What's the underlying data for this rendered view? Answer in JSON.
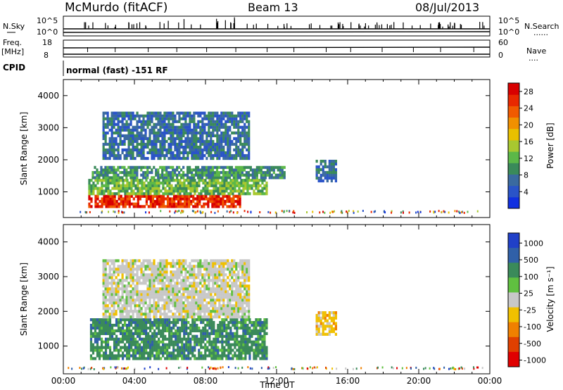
{
  "header": {
    "station": "McMurdo (fitACF)",
    "beam": "Beam 13",
    "date": "08/Jul/2013",
    "cpid_mode": "normal (fast) -151 RF"
  },
  "side_labels": {
    "nsky": "N.Sky",
    "freq": "Freq.",
    "mhz": "[MHz]",
    "cpid": "CPID",
    "nsearch": "N.Search",
    "nave": "Nave",
    "dots": "......",
    "dots_short": "...."
  },
  "strip_ticks": {
    "noise_top_left": "10^5",
    "noise_bottom_left": "10^0",
    "noise_top_right": "10^5",
    "noise_bottom_right": "10^0",
    "freq_top": "18",
    "freq_bottom": "8",
    "nave_top": "60",
    "nave_bottom": "0"
  },
  "colors": {
    "low_blue": "#1f3fd6",
    "mid_green": "#3a8a5a",
    "yellow": "#e0c200",
    "orange": "#f07800",
    "red": "#e01010",
    "grey": "#b8b8b8"
  },
  "chart_data": [
    {
      "type": "heatmap",
      "name": "power",
      "xlabel": "",
      "ylabel": "Slant Range [km]",
      "xlim": [
        0,
        24
      ],
      "ylim": [
        200,
        4500
      ],
      "yticks": [
        1000,
        2000,
        3000,
        4000
      ],
      "colorbar": {
        "label": "Power [dB]",
        "ticks": [
          "4",
          "8",
          "12",
          "16",
          "20",
          "24",
          "28"
        ],
        "colors": [
          "#1030e0",
          "#2a54c8",
          "#3a6aa0",
          "#3a8a5a",
          "#5cb848",
          "#a8c830",
          "#e8c000",
          "#f09000",
          "#f05a00",
          "#e82800",
          "#d80000"
        ]
      },
      "bands": [
        {
          "t0": 1.4,
          "t1": 10.0,
          "r0": 500,
          "r1": 900,
          "value": 26
        },
        {
          "t0": 1.4,
          "t1": 11.5,
          "r0": 900,
          "r1": 1400,
          "value": 12
        },
        {
          "t0": 1.6,
          "t1": 12.5,
          "r0": 1400,
          "r1": 1800,
          "value": 8
        },
        {
          "t0": 2.2,
          "t1": 10.5,
          "r0": 2000,
          "r1": 3500,
          "value": 6
        },
        {
          "t0": 14.2,
          "t1": 15.4,
          "r0": 1300,
          "r1": 2000,
          "value": 6
        }
      ]
    },
    {
      "type": "heatmap",
      "name": "velocity",
      "xlabel": "Time UT",
      "ylabel": "Slant Range [km]",
      "xlim": [
        0,
        24
      ],
      "ylim": [
        200,
        4500
      ],
      "xticks": [
        "00:00",
        "04:00",
        "08:00",
        "12:00",
        "16:00",
        "20:00",
        "00:00"
      ],
      "yticks": [
        1000,
        2000,
        3000,
        4000
      ],
      "colorbar": {
        "label": "Velocity [m s⁻¹]",
        "ticks": [
          "1000",
          "500",
          "100",
          "25",
          "-25",
          "-100",
          "-500",
          "-1000"
        ],
        "colors": [
          "#2040c8",
          "#3060a8",
          "#3a8a5a",
          "#60c040",
          "#c8c8c8",
          "#f0c000",
          "#f08000",
          "#e04000",
          "#e00000"
        ]
      },
      "bands": [
        {
          "t0": 1.5,
          "t1": 11.5,
          "r0": 600,
          "r1": 1800,
          "value": 100
        },
        {
          "t0": 2.2,
          "t1": 10.5,
          "r0": 1800,
          "r1": 3500,
          "value": 25
        },
        {
          "t0": 14.2,
          "t1": 15.4,
          "r0": 1300,
          "r1": 2000,
          "value": -100
        }
      ]
    }
  ]
}
